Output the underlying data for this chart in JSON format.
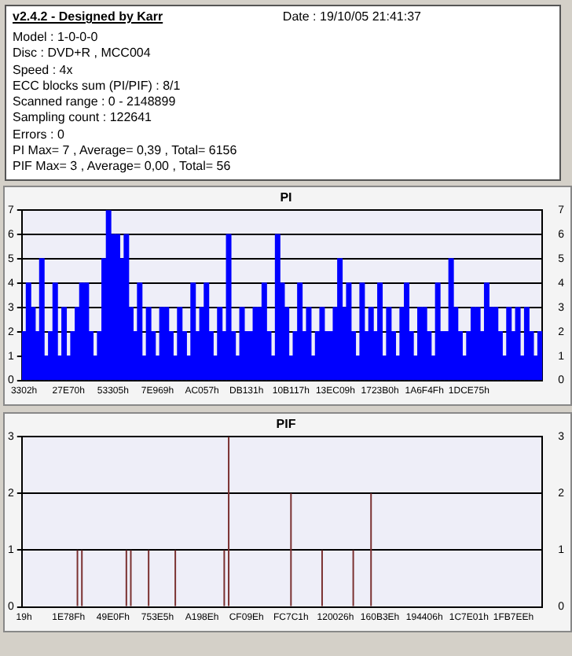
{
  "chart_data": [
    {
      "type": "other",
      "title": "v2.4.2 - Designed by Karr",
      "subtitle": "Date : 19/10/05 21:41:37",
      "annotations": [
        "Model : 1-0-0-0",
        "Disc : DVD+R , MCC004",
        "Speed : 4x",
        "ECC blocks sum (PI/PIF) : 8/1",
        "Scanned range : 0 - 2148899",
        "Sampling count : 122641",
        "Errors : 0",
        "PI Max= 7 , Average= 0,39 , Total= 6156",
        "PIF Max= 3 , Average= 0,00 , Total= 56"
      ]
    },
    {
      "type": "bar",
      "title": "PI",
      "categories": [
        "3302h",
        null,
        null,
        null,
        null,
        null,
        null,
        null,
        null,
        null,
        "27E70h",
        null,
        null,
        null,
        null,
        null,
        null,
        null,
        null,
        null,
        "53305h",
        null,
        null,
        null,
        null,
        null,
        null,
        null,
        null,
        null,
        "7E969h",
        null,
        null,
        null,
        null,
        null,
        null,
        null,
        null,
        null,
        "AC057h",
        null,
        null,
        null,
        null,
        null,
        null,
        null,
        null,
        null,
        "DB131h",
        null,
        null,
        null,
        null,
        null,
        null,
        null,
        null,
        null,
        "10B117h",
        null,
        null,
        null,
        null,
        null,
        null,
        null,
        null,
        null,
        "13EC09h",
        null,
        null,
        null,
        null,
        null,
        null,
        null,
        null,
        null,
        "1723B0h",
        null,
        null,
        null,
        null,
        null,
        null,
        null,
        null,
        null,
        "1A6F4Fh",
        null,
        null,
        null,
        null,
        null,
        null,
        null,
        null,
        null,
        "1DCE75h",
        null,
        null,
        null,
        null,
        null,
        null,
        null,
        null,
        null,
        null,
        null,
        null,
        null,
        null,
        null,
        null
      ],
      "values": [
        2,
        4,
        3,
        2,
        5,
        1,
        2,
        4,
        1,
        3,
        1,
        2,
        3,
        4,
        4,
        2,
        1,
        2,
        5,
        7,
        6,
        6,
        5,
        6,
        3,
        2,
        4,
        1,
        3,
        2,
        1,
        3,
        3,
        2,
        1,
        3,
        2,
        1,
        4,
        2,
        3,
        4,
        2,
        1,
        3,
        2,
        6,
        2,
        1,
        3,
        2,
        2,
        3,
        3,
        4,
        2,
        1,
        6,
        4,
        3,
        1,
        2,
        4,
        2,
        3,
        1,
        2,
        3,
        2,
        2,
        3,
        5,
        3,
        4,
        2,
        1,
        4,
        2,
        3,
        2,
        4,
        1,
        3,
        2,
        1,
        3,
        4,
        2,
        1,
        3,
        3,
        2,
        1,
        4,
        2,
        2,
        5,
        3,
        2,
        1,
        2,
        3,
        3,
        2,
        4,
        3,
        3,
        2,
        1,
        3,
        2,
        3,
        1,
        3,
        2,
        1,
        2
      ],
      "color": "#0000ff",
      "ylim": [
        0,
        7
      ],
      "yticks": [
        0,
        1,
        2,
        3,
        4,
        5,
        6,
        7
      ],
      "y2lim": [
        0,
        7
      ],
      "y2ticks": [
        0,
        1,
        2,
        3,
        4,
        5,
        6,
        7
      ],
      "grid": "y",
      "legend": false
    },
    {
      "type": "bar",
      "title": "PIF",
      "categories": [
        "19h",
        null,
        null,
        null,
        null,
        null,
        null,
        null,
        null,
        null,
        "1E78Fh",
        null,
        null,
        null,
        null,
        null,
        null,
        null,
        null,
        null,
        "49E0Fh",
        null,
        null,
        null,
        null,
        null,
        null,
        null,
        null,
        null,
        "753E5h",
        null,
        null,
        null,
        null,
        null,
        null,
        null,
        null,
        null,
        "A198Eh",
        null,
        null,
        null,
        null,
        null,
        null,
        null,
        null,
        null,
        "CF09Eh",
        null,
        null,
        null,
        null,
        null,
        null,
        null,
        null,
        null,
        "FC7C1h",
        null,
        null,
        null,
        null,
        null,
        null,
        null,
        null,
        null,
        "120026h",
        null,
        null,
        null,
        null,
        null,
        null,
        null,
        null,
        null,
        "160B3Eh",
        null,
        null,
        null,
        null,
        null,
        null,
        null,
        null,
        null,
        "194406h",
        null,
        null,
        null,
        null,
        null,
        null,
        null,
        null,
        null,
        "1C7E01h",
        null,
        null,
        null,
        null,
        null,
        null,
        null,
        null,
        null,
        "1FB7EEh",
        null,
        null,
        null,
        null,
        null,
        null
      ],
      "values": [
        0,
        0,
        0,
        0,
        0,
        0,
        0,
        0,
        0,
        0,
        0,
        0,
        1,
        1,
        0,
        0,
        0,
        0,
        0,
        0,
        0,
        0,
        0,
        1,
        1,
        0,
        0,
        0,
        1,
        0,
        0,
        0,
        0,
        0,
        1,
        0,
        0,
        0,
        0,
        0,
        0,
        0,
        0,
        0,
        0,
        1,
        3,
        0,
        0,
        0,
        0,
        0,
        0,
        0,
        0,
        0,
        0,
        0,
        0,
        0,
        2,
        0,
        0,
        0,
        0,
        0,
        0,
        1,
        0,
        0,
        0,
        0,
        0,
        0,
        1,
        0,
        0,
        0,
        2,
        0,
        0,
        0,
        0,
        0,
        0,
        0,
        0,
        0,
        0,
        0,
        0,
        0,
        0,
        0,
        0,
        0,
        0,
        0,
        0,
        0,
        0,
        0,
        0,
        0,
        0,
        0,
        0,
        0,
        0,
        0,
        0,
        0,
        0,
        0,
        0,
        0,
        0
      ],
      "color": "#7a3030",
      "ylim": [
        0,
        3
      ],
      "yticks": [
        0,
        1,
        2,
        3
      ],
      "y2lim": [
        0,
        3
      ],
      "y2ticks": [
        0,
        1,
        2,
        3
      ],
      "grid": "y",
      "legend": false
    }
  ]
}
